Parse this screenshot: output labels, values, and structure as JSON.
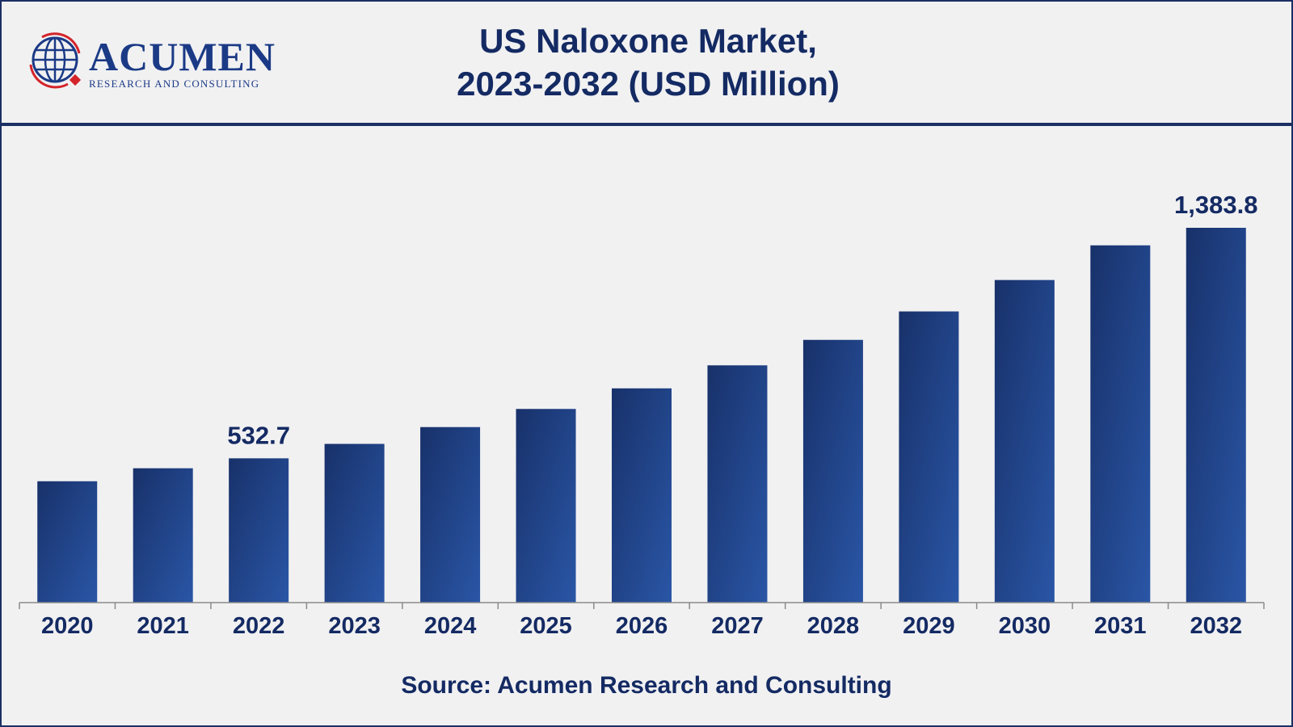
{
  "header": {
    "logo": {
      "word": "ACUMEN",
      "subtitle": "RESEARCH AND CONSULTING"
    },
    "title_line1": "US Naloxone Market,",
    "title_line2": "2023-2032 (USD Million)"
  },
  "source": "Source: Acumen Research and Consulting",
  "colors": {
    "bar_dark": "#18316a",
    "bar_light": "#2a56a6",
    "text": "#142a63",
    "border": "#1b2f63",
    "background": "#f1f1f2",
    "logo_red": "#d4242a"
  },
  "chart_data": {
    "type": "bar",
    "title": "US Naloxone Market, 2023-2032 (USD Million)",
    "xlabel": "",
    "ylabel": "",
    "categories": [
      "2020",
      "2021",
      "2022",
      "2023",
      "2024",
      "2025",
      "2026",
      "2027",
      "2028",
      "2029",
      "2030",
      "2031",
      "2032"
    ],
    "values": [
      448,
      496,
      532.7,
      586,
      648,
      715,
      791,
      876,
      970,
      1075,
      1191,
      1319,
      1383.8
    ],
    "data_labels": [
      {
        "category": "2022",
        "text": "532.7"
      },
      {
        "category": "2032",
        "text": "1,383.8"
      }
    ],
    "ylim": [
      0,
      1383.8
    ],
    "grid": false,
    "legend": "none"
  }
}
